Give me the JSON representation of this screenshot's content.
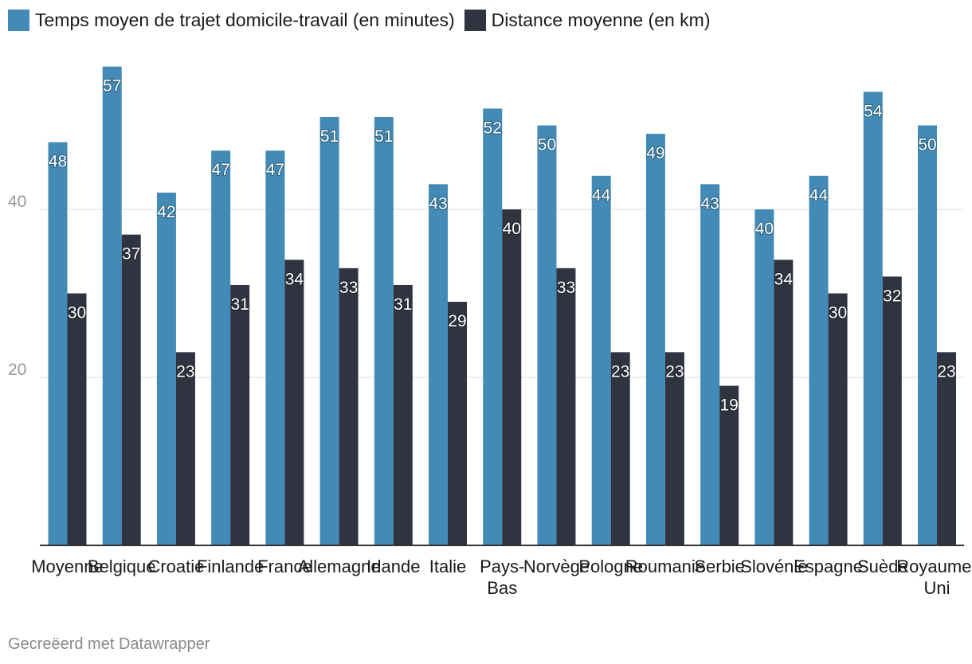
{
  "chart_data": {
    "type": "bar",
    "title": "",
    "xlabel": "",
    "ylabel": "",
    "ylim": [
      0,
      60
    ],
    "yticks": [
      20,
      40
    ],
    "grid": true,
    "legend_position": "top-left",
    "categories": [
      "Moyenne",
      "Belgique",
      "Croatie",
      "Finlande",
      "France",
      "Allemagne",
      "Irlande",
      "Italie",
      "Pays-Bas",
      "Norvège",
      "Pologne",
      "Roumanie",
      "Serbie",
      "Slovénie",
      "Espagne",
      "Suède",
      "Royaume-Uni"
    ],
    "category_labels": [
      [
        "Moyenne"
      ],
      [
        "Belgique"
      ],
      [
        "Croatie"
      ],
      [
        "Finlande"
      ],
      [
        "France"
      ],
      [
        "Allemagne"
      ],
      [
        "Irlande"
      ],
      [
        "Italie"
      ],
      [
        "Pays-",
        "Bas"
      ],
      [
        "Norvège"
      ],
      [
        "Pologne"
      ],
      [
        "Roumanie"
      ],
      [
        "Serbie"
      ],
      [
        "Slovénie"
      ],
      [
        "Espagne"
      ],
      [
        "Suède"
      ],
      [
        "Royaume-",
        "Uni"
      ]
    ],
    "series": [
      {
        "name": "Temps moyen de trajet domicile-travail (en minutes)",
        "color": "#438bb6",
        "values": [
          48,
          57,
          42,
          47,
          47,
          51,
          51,
          43,
          52,
          50,
          44,
          49,
          43,
          40,
          44,
          54,
          50
        ]
      },
      {
        "name": "Distance moyenne (en km)",
        "color": "#2f3440",
        "values": [
          30,
          37,
          23,
          31,
          34,
          33,
          31,
          29,
          40,
          33,
          23,
          23,
          19,
          34,
          30,
          32,
          23
        ]
      }
    ]
  },
  "footer": {
    "credit": "Gecreëerd met Datawrapper"
  }
}
